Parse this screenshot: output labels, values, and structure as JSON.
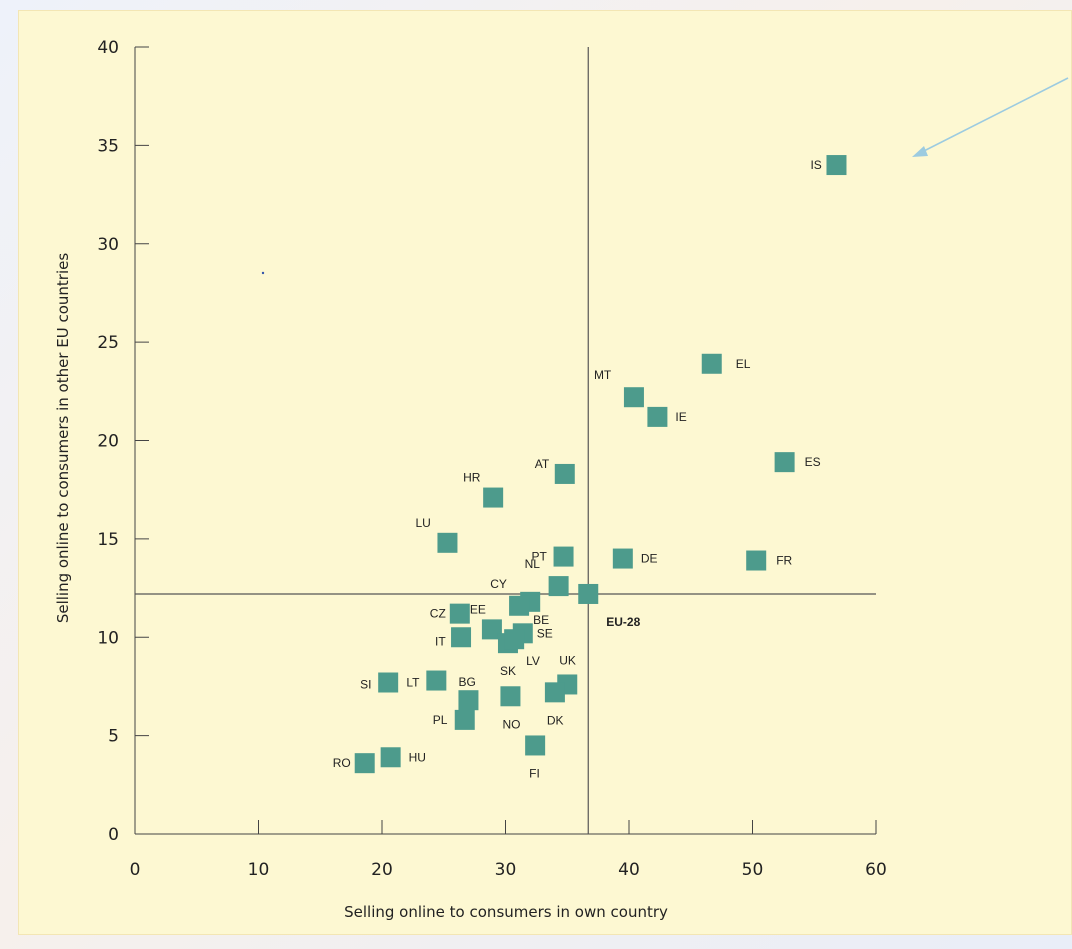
{
  "chart_data": {
    "type": "scatter",
    "xlabel": "Selling online to consumers in own country",
    "ylabel": "Selling online to consumers in other EU countries",
    "xlim": [
      0,
      60
    ],
    "ylim": [
      0,
      40
    ],
    "xticks": [
      0,
      10,
      20,
      30,
      40,
      50,
      60
    ],
    "yticks": [
      0,
      5,
      10,
      15,
      20,
      25,
      30,
      35,
      40
    ],
    "grid": false,
    "marker_color": "#4d9b8c",
    "reference_lines": {
      "x": 36.7,
      "y": 12.2
    },
    "points": [
      {
        "label": "IS",
        "x": 56.8,
        "y": 34.0
      },
      {
        "label": "EL",
        "x": 46.7,
        "y": 23.9
      },
      {
        "label": "MT",
        "x": 40.4,
        "y": 22.2
      },
      {
        "label": "IE",
        "x": 42.3,
        "y": 21.2
      },
      {
        "label": "ES",
        "x": 52.6,
        "y": 18.9
      },
      {
        "label": "AT",
        "x": 34.8,
        "y": 18.3
      },
      {
        "label": "HR",
        "x": 29.0,
        "y": 17.1
      },
      {
        "label": "LU",
        "x": 25.3,
        "y": 14.8
      },
      {
        "label": "PT",
        "x": 34.7,
        "y": 14.1
      },
      {
        "label": "DE",
        "x": 39.5,
        "y": 14.0
      },
      {
        "label": "FR",
        "x": 50.3,
        "y": 13.9
      },
      {
        "label": "NL",
        "x": 34.3,
        "y": 12.6
      },
      {
        "label": "CY",
        "x": 32.0,
        "y": 11.8
      },
      {
        "label": "EU-28",
        "x": 36.7,
        "y": 12.2
      },
      {
        "label": "CZ",
        "x": 26.3,
        "y": 11.2
      },
      {
        "label": "EE",
        "x": 28.9,
        "y": 10.4
      },
      {
        "label": "BE",
        "x": 31.1,
        "y": 11.6
      },
      {
        "label": "IT",
        "x": 26.4,
        "y": 10.0
      },
      {
        "label": "SE",
        "x": 31.4,
        "y": 10.2
      },
      {
        "label": "SK",
        "x": 30.2,
        "y": 9.7
      },
      {
        "label": "LV",
        "x": 30.7,
        "y": 9.9
      },
      {
        "label": "UK",
        "x": 35.0,
        "y": 7.6
      },
      {
        "label": "SI",
        "x": 20.5,
        "y": 7.7
      },
      {
        "label": "LT",
        "x": 24.4,
        "y": 7.8
      },
      {
        "label": "BG",
        "x": 27.0,
        "y": 6.8
      },
      {
        "label": "NO",
        "x": 30.4,
        "y": 7.0
      },
      {
        "label": "DK",
        "x": 34.0,
        "y": 7.2
      },
      {
        "label": "PL",
        "x": 26.7,
        "y": 5.8
      },
      {
        "label": "FI",
        "x": 32.4,
        "y": 4.5
      },
      {
        "label": "RO",
        "x": 18.6,
        "y": 3.6
      },
      {
        "label": "HU",
        "x": 20.7,
        "y": 3.9
      }
    ]
  }
}
